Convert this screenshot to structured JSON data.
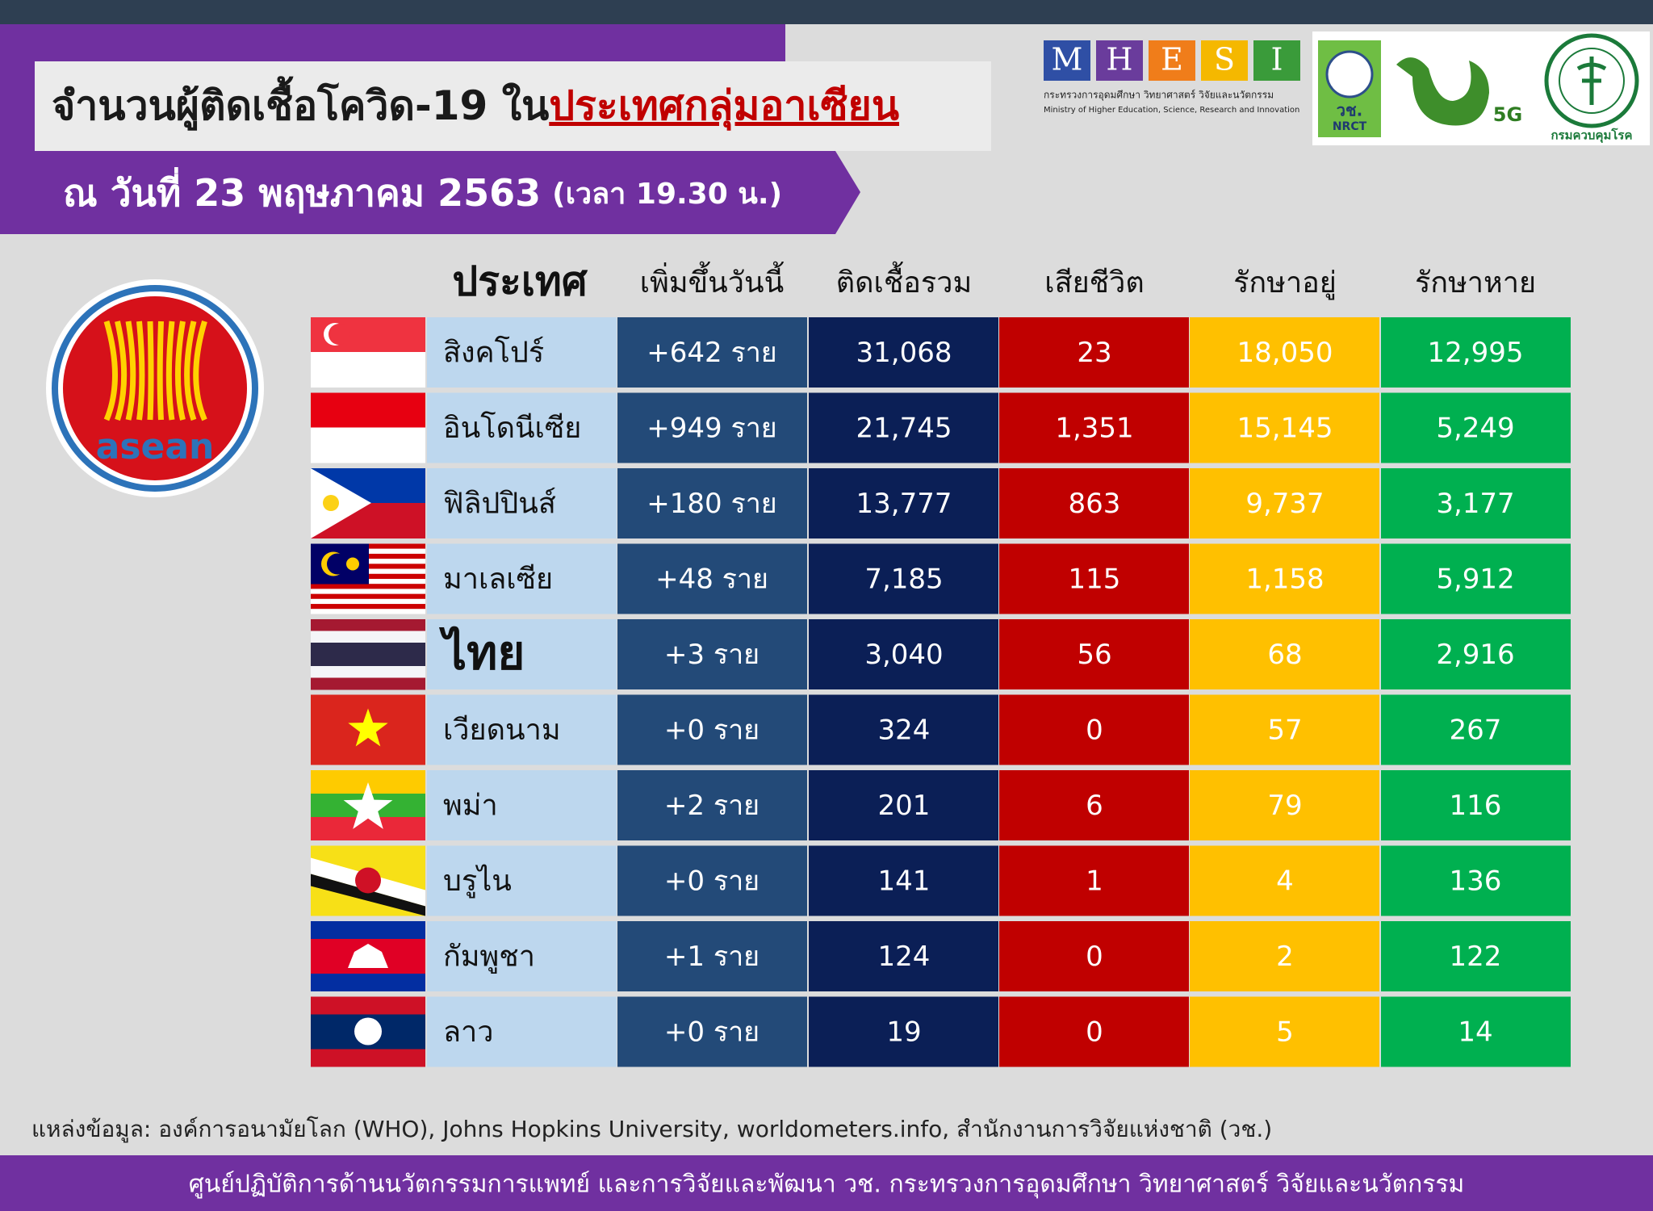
{
  "header": {
    "title_lead": "จำนวนผู้ติดเชื้อโควิด-19 ใน",
    "title_highlight": "ประเทศกลุ่มอาเซียน",
    "date": "ณ วันที่ 23 พฤษภาคม 2563",
    "time": "(เวลา 19.30 น.)"
  },
  "logos": {
    "mhesi_letters": [
      "M",
      "H",
      "E",
      "S",
      "I"
    ],
    "mhesi_thai": "กระทรวงการอุดมศึกษา วิทยาศาสตร์ วิจัยและนวัตกรรม",
    "mhesi_english": "Ministry of Higher Education, Science, Research and Innovation",
    "nrct_thai": "วช.",
    "nrct_english": "NRCT",
    "five_g": "5G",
    "ddc": "กรมควบคุมโรค",
    "asean": "asean"
  },
  "table": {
    "headers": [
      "ประเทศ",
      "เพิ่มขึ้นวันนี้",
      "ติดเชื้อรวม",
      "เสียชีวิต",
      "รักษาอยู่",
      "รักษาหาย"
    ],
    "rows": [
      [
        "สิงคโปร์",
        "+642 ราย",
        "31,068",
        "23",
        "18,050",
        "12,995"
      ],
      [
        "อินโดนีเซีย",
        "+949 ราย",
        "21,745",
        "1,351",
        "15,145",
        "5,249"
      ],
      [
        "ฟิลิปปินส์",
        "+180 ราย",
        "13,777",
        "863",
        "9,737",
        "3,177"
      ],
      [
        "มาเลเซีย",
        "+48 ราย",
        "7,185",
        "115",
        "1,158",
        "5,912"
      ],
      [
        "ไทย",
        "+3 ราย",
        "3,040",
        "56",
        "68",
        "2,916"
      ],
      [
        "เวียดนาม",
        "+0 ราย",
        "324",
        "0",
        "57",
        "267"
      ],
      [
        "พม่า",
        "+2 ราย",
        "201",
        "6",
        "79",
        "116"
      ],
      [
        "บรูไน",
        "+0 ราย",
        "141",
        "1",
        "4",
        "136"
      ],
      [
        "กัมพูชา",
        "+1 ราย",
        "124",
        "0",
        "2",
        "122"
      ],
      [
        "ลาว",
        "+0 ราย",
        "19",
        "0",
        "5",
        "14"
      ]
    ]
  },
  "source": "แหล่งข้อมูล: องค์การอนามัยโลก (WHO), Johns Hopkins University, worldometers.info, สำนักงานการวิจัยแห่งชาติ (วช.)",
  "footer": "ศูนย์ปฏิบัติการด้านนวัตกรรมการแพทย์ และการวิจัยและพัฒนา  วช.   กระทรวงการอุดมศึกษา วิทยาศาสตร์ วิจัยและนวัตกรรม"
}
